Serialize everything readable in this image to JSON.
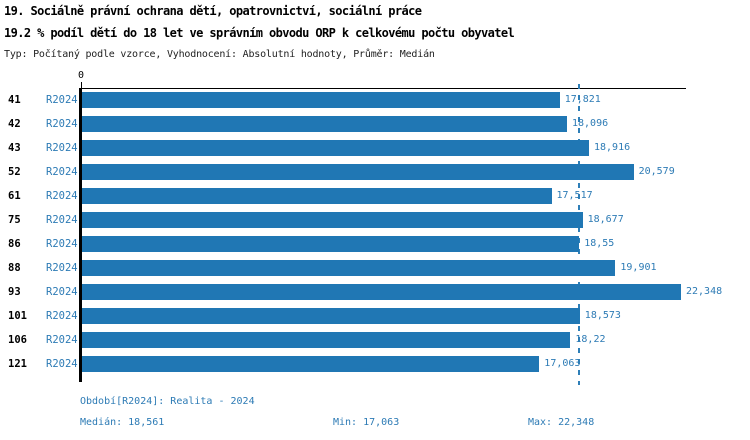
{
  "header": {
    "title": "19. Sociálně právní ochrana dětí, opatrovnictví, sociální práce",
    "subtitle": "19.2 % podíl dětí do 18 let ve správním obvodu ORP k celkovému počtu obyvatel",
    "meta": "Typ: Počítaný podle vzorce, Vyhodnocení: Absolutní hodnoty, Průměr: Medián"
  },
  "chart_data": {
    "type": "bar",
    "orientation": "horizontal",
    "title": "19. Sociálně právní ochrana dětí, opatrovnictví, sociální práce",
    "subtitle": "19.2 % podíl dětí do 18 let ve správním obvodu ORP k celkovému počtu obyvatel",
    "categories": [
      "41",
      "42",
      "43",
      "52",
      "61",
      "75",
      "86",
      "88",
      "93",
      "101",
      "106",
      "121"
    ],
    "series_label": "R2024",
    "values": [
      17.821,
      18.096,
      18.916,
      20.579,
      17.517,
      18.677,
      18.55,
      19.901,
      22.348,
      18.573,
      18.22,
      17.063
    ],
    "value_labels": [
      "17,821",
      "18,096",
      "18,916",
      "20,579",
      "17,517",
      "18,677",
      "18,55",
      "19,901",
      "22,348",
      "18,573",
      "18,22",
      "17,063"
    ],
    "x_axis_zero_label": "0",
    "xlim": [
      0,
      22.6
    ],
    "median": 18.561,
    "min": 17.063,
    "max": 22.348,
    "grid": false,
    "legend_position": "none",
    "bar_color": "#2077b4",
    "median_line_color": "#2e7fb8",
    "label_color": "#2d7bb5",
    "axis_color": "#000000"
  },
  "footer": {
    "period": "Období[R2024]: Realita - 2024",
    "median": "Medián: 18,561",
    "min": "Min: 17,063",
    "max": "Max: 22,348"
  }
}
